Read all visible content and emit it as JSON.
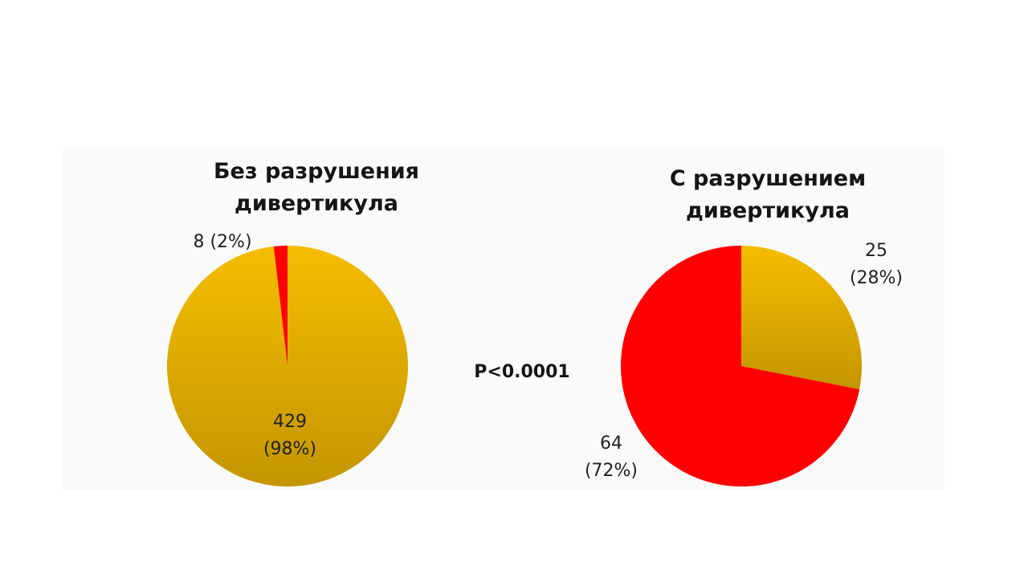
{
  "colors": {
    "gold_top": "#f5bd00",
    "gold_bottom": "#c49500",
    "red": "#ff0000",
    "text": "#151515"
  },
  "p_value": "P<0.0001",
  "chart_data": [
    {
      "type": "pie",
      "title": "Без разрушения\nдивертикула",
      "values": [
        8,
        429
      ],
      "labels": [
        "8 (2%)",
        "429\n(98%)"
      ],
      "colors": [
        "red",
        "gold"
      ]
    },
    {
      "type": "pie",
      "title": "С разрушением\nдивертикула",
      "values": [
        25,
        64
      ],
      "labels": [
        "25\n(28%)",
        "64\n(72%)"
      ],
      "colors": [
        "gold",
        "red"
      ]
    }
  ]
}
